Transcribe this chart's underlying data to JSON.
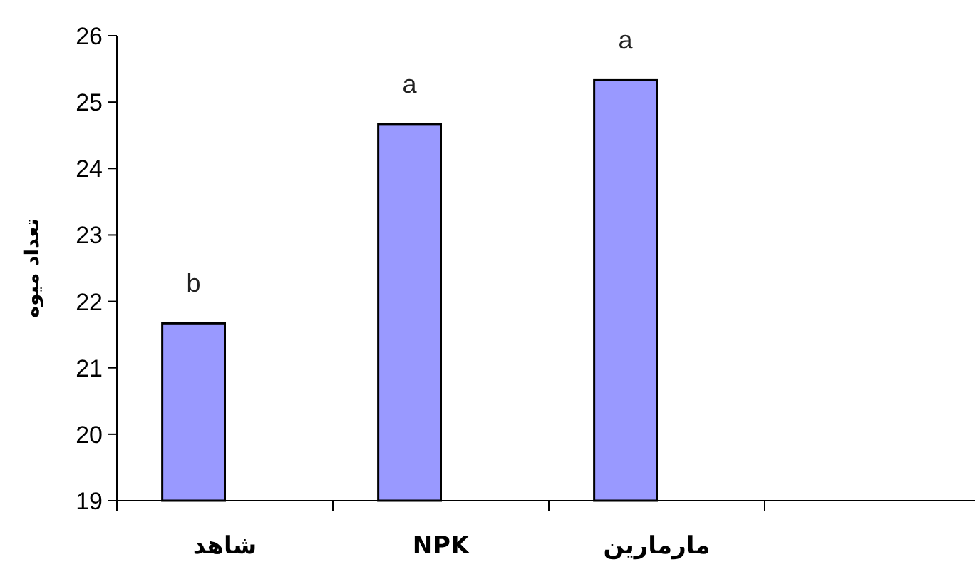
{
  "chart_data": {
    "type": "bar",
    "ylabel": "تعداد میوه",
    "categories": [
      "شاهد",
      "NPK",
      "مارمارین",
      null
    ],
    "values": [
      21.67,
      24.67,
      25.33,
      null
    ],
    "color": "#9999ff",
    "ylim": [
      19,
      26
    ],
    "yticks": [
      19,
      20,
      21,
      22,
      23,
      24,
      25,
      26
    ],
    "grid": false,
    "annotations": [
      {
        "text": "b",
        "x": "شاهد",
        "y": 21.67
      },
      {
        "text": "a",
        "x": "NPK",
        "y": 24.67
      },
      {
        "text": "a",
        "x": "مارمارین",
        "y": 25.33
      }
    ]
  }
}
